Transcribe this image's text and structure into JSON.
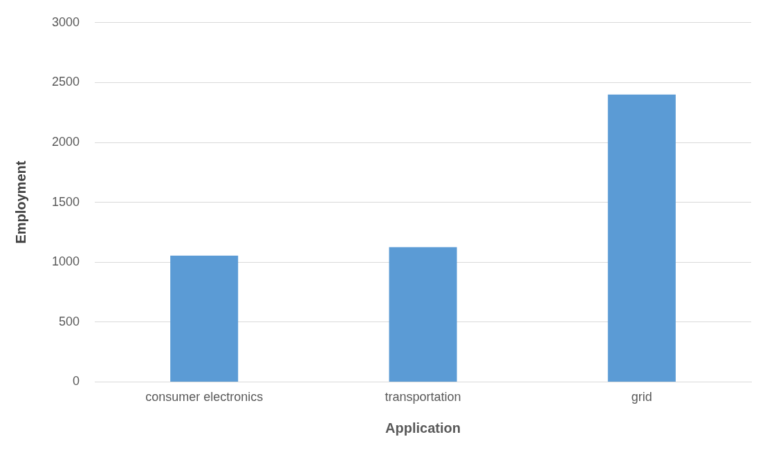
{
  "chart_data": {
    "type": "bar",
    "xlabel": "Application",
    "ylabel": "Employment",
    "categories": [
      "consumer electronics",
      "transportation",
      "grid"
    ],
    "values": [
      1055,
      1125,
      2400
    ],
    "color": "#5b9bd5",
    "ylim": [
      0,
      3000
    ],
    "yticks": [
      0,
      500,
      1000,
      1500,
      2000,
      2500,
      3000
    ],
    "grid": "y",
    "legend": false
  }
}
